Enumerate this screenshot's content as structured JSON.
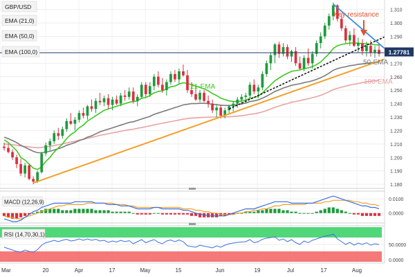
{
  "symbol": "GBP/USD",
  "price_tag": "1.27781",
  "indicators": [
    "EMA (21,0)",
    "EMA (50,0)",
    "EMA (100,0)"
  ],
  "annotations": {
    "key_resistance": "Key resistance",
    "ema21": "21-EMA",
    "ema50": "50-EMA",
    "ema100": "100-EMA"
  },
  "macd": {
    "label": "MACD (12,26,9)",
    "ticks": [
      "0.0100",
      "0.0000"
    ]
  },
  "rsi": {
    "label": "RSI (14,70,30,1)",
    "ticks": [
      "50.0000",
      "0.0000"
    ]
  },
  "colors": {
    "up": "#1e9a3c",
    "down": "#d9323e",
    "ema21": "#3cc81e",
    "ema50": "#7a7a7a",
    "ema100": "#e8a3a3",
    "support": "#f2a02a",
    "resistance": "#3a8de0",
    "annotation": "#e0522e",
    "rsi_overbought": "#3fd16c",
    "rsi_oversold": "#f46a6a"
  },
  "chart_data": {
    "type": "candlestick",
    "xlabels": [
      "Mar",
      "20",
      "Apr",
      "17",
      "May",
      "15",
      "Jun",
      "19",
      "Jul",
      "17",
      "Aug"
    ],
    "yticks": [
      1.18,
      1.19,
      1.2,
      1.21,
      1.22,
      1.23,
      1.24,
      1.25,
      1.26,
      1.27,
      1.28,
      1.29,
      1.3,
      1.31
    ],
    "ylim": [
      1.178,
      1.316
    ],
    "current_price": 1.27781,
    "candles": [
      [
        1.208,
        1.211,
        1.205,
        1.207
      ],
      [
        1.207,
        1.21,
        1.203,
        1.204
      ],
      [
        1.204,
        1.206,
        1.198,
        1.2
      ],
      [
        1.2,
        1.202,
        1.192,
        1.195
      ],
      [
        1.195,
        1.199,
        1.186,
        1.188
      ],
      [
        1.188,
        1.196,
        1.185,
        1.194
      ],
      [
        1.194,
        1.195,
        1.183,
        1.184
      ],
      [
        1.184,
        1.186,
        1.18,
        1.182
      ],
      [
        1.182,
        1.19,
        1.181,
        1.189
      ],
      [
        1.189,
        1.204,
        1.188,
        1.203
      ],
      [
        1.203,
        1.211,
        1.201,
        1.209
      ],
      [
        1.209,
        1.214,
        1.205,
        1.212
      ],
      [
        1.212,
        1.22,
        1.21,
        1.218
      ],
      [
        1.218,
        1.222,
        1.213,
        1.216
      ],
      [
        1.216,
        1.223,
        1.214,
        1.221
      ],
      [
        1.221,
        1.229,
        1.219,
        1.227
      ],
      [
        1.227,
        1.233,
        1.224,
        1.225
      ],
      [
        1.225,
        1.23,
        1.22,
        1.228
      ],
      [
        1.228,
        1.235,
        1.226,
        1.233
      ],
      [
        1.233,
        1.237,
        1.229,
        1.231
      ],
      [
        1.231,
        1.239,
        1.228,
        1.238
      ],
      [
        1.238,
        1.243,
        1.234,
        1.236
      ],
      [
        1.236,
        1.244,
        1.233,
        1.242
      ],
      [
        1.242,
        1.248,
        1.239,
        1.241
      ],
      [
        1.241,
        1.246,
        1.238,
        1.244
      ],
      [
        1.244,
        1.247,
        1.236,
        1.239
      ],
      [
        1.239,
        1.245,
        1.235,
        1.243
      ],
      [
        1.243,
        1.246,
        1.239,
        1.24
      ],
      [
        1.24,
        1.248,
        1.238,
        1.246
      ],
      [
        1.246,
        1.25,
        1.242,
        1.245
      ],
      [
        1.245,
        1.252,
        1.243,
        1.249
      ],
      [
        1.249,
        1.252,
        1.24,
        1.242
      ],
      [
        1.242,
        1.247,
        1.238,
        1.245
      ],
      [
        1.245,
        1.256,
        1.244,
        1.254
      ],
      [
        1.254,
        1.256,
        1.245,
        1.247
      ],
      [
        1.247,
        1.256,
        1.245,
        1.253
      ],
      [
        1.253,
        1.262,
        1.25,
        1.26
      ],
      [
        1.26,
        1.264,
        1.252,
        1.254
      ],
      [
        1.254,
        1.259,
        1.248,
        1.25
      ],
      [
        1.25,
        1.258,
        1.246,
        1.256
      ],
      [
        1.256,
        1.264,
        1.254,
        1.262
      ],
      [
        1.262,
        1.265,
        1.256,
        1.258
      ],
      [
        1.258,
        1.266,
        1.255,
        1.264
      ],
      [
        1.264,
        1.269,
        1.26,
        1.261
      ],
      [
        1.261,
        1.265,
        1.248,
        1.25
      ],
      [
        1.25,
        1.256,
        1.245,
        1.247
      ],
      [
        1.247,
        1.253,
        1.242,
        1.243
      ],
      [
        1.243,
        1.25,
        1.241,
        1.248
      ],
      [
        1.248,
        1.25,
        1.241,
        1.242
      ],
      [
        1.242,
        1.246,
        1.237,
        1.24
      ],
      [
        1.24,
        1.243,
        1.233,
        1.235
      ],
      [
        1.235,
        1.239,
        1.23,
        1.237
      ],
      [
        1.237,
        1.239,
        1.229,
        1.231
      ],
      [
        1.231,
        1.237,
        1.229,
        1.235
      ],
      [
        1.235,
        1.239,
        1.232,
        1.238
      ],
      [
        1.238,
        1.242,
        1.234,
        1.24
      ],
      [
        1.24,
        1.245,
        1.237,
        1.243
      ],
      [
        1.243,
        1.247,
        1.239,
        1.245
      ],
      [
        1.245,
        1.248,
        1.241,
        1.246
      ],
      [
        1.246,
        1.256,
        1.244,
        1.254
      ],
      [
        1.254,
        1.258,
        1.247,
        1.249
      ],
      [
        1.249,
        1.254,
        1.244,
        1.252
      ],
      [
        1.252,
        1.264,
        1.25,
        1.262
      ],
      [
        1.262,
        1.272,
        1.26,
        1.27
      ],
      [
        1.27,
        1.278,
        1.265,
        1.276
      ],
      [
        1.276,
        1.285,
        1.27,
        1.284
      ],
      [
        1.284,
        1.286,
        1.274,
        1.277
      ],
      [
        1.277,
        1.285,
        1.275,
        1.282
      ],
      [
        1.282,
        1.284,
        1.273,
        1.275
      ],
      [
        1.275,
        1.28,
        1.271,
        1.279
      ],
      [
        1.279,
        1.282,
        1.268,
        1.27
      ],
      [
        1.27,
        1.275,
        1.265,
        1.266
      ],
      [
        1.266,
        1.276,
        1.264,
        1.274
      ],
      [
        1.274,
        1.281,
        1.268,
        1.27
      ],
      [
        1.27,
        1.279,
        1.266,
        1.277
      ],
      [
        1.277,
        1.287,
        1.275,
        1.285
      ],
      [
        1.285,
        1.293,
        1.281,
        1.29
      ],
      [
        1.29,
        1.3,
        1.288,
        1.298
      ],
      [
        1.298,
        1.307,
        1.295,
        1.305
      ],
      [
        1.305,
        1.315,
        1.302,
        1.313
      ],
      [
        1.313,
        1.314,
        1.301,
        1.303
      ],
      [
        1.303,
        1.306,
        1.294,
        1.296
      ],
      [
        1.296,
        1.298,
        1.285,
        1.287
      ],
      [
        1.287,
        1.294,
        1.283,
        1.291
      ],
      [
        1.291,
        1.296,
        1.282,
        1.283
      ],
      [
        1.283,
        1.289,
        1.278,
        1.285
      ],
      [
        1.285,
        1.288,
        1.276,
        1.279
      ],
      [
        1.279,
        1.286,
        1.275,
        1.283
      ],
      [
        1.283,
        1.287,
        1.275,
        1.278
      ],
      [
        1.278,
        1.283,
        1.274,
        1.28
      ],
      [
        1.28,
        1.284,
        1.275,
        1.277
      ]
    ],
    "ema21": [
      1.213,
      1.211,
      1.208,
      1.205,
      1.2,
      1.198,
      1.195,
      1.192,
      1.191,
      1.193,
      1.197,
      1.2,
      1.204,
      1.207,
      1.21,
      1.214,
      1.217,
      1.219,
      1.222,
      1.224,
      1.227,
      1.229,
      1.231,
      1.233,
      1.235,
      1.236,
      1.237,
      1.238,
      1.239,
      1.24,
      1.241,
      1.2415,
      1.242,
      1.244,
      1.2445,
      1.246,
      1.248,
      1.249,
      1.2495,
      1.251,
      1.2525,
      1.253,
      1.2545,
      1.2555,
      1.255,
      1.254,
      1.253,
      1.252,
      1.251,
      1.2495,
      1.2475,
      1.246,
      1.244,
      1.243,
      1.242,
      1.2415,
      1.2415,
      1.242,
      1.2425,
      1.244,
      1.2445,
      1.2455,
      1.248,
      1.251,
      1.254,
      1.257,
      1.259,
      1.261,
      1.2625,
      1.264,
      1.2645,
      1.265,
      1.266,
      1.2665,
      1.2675,
      1.269,
      1.271,
      1.274,
      1.277,
      1.281,
      1.283,
      1.284,
      1.2845,
      1.285,
      1.285,
      1.285,
      1.2845,
      1.2845,
      1.284,
      1.2838,
      1.2835
    ],
    "ema50": [
      1.215,
      1.214,
      1.2125,
      1.211,
      1.209,
      1.2075,
      1.206,
      1.2045,
      1.2035,
      1.2035,
      1.204,
      1.2045,
      1.2055,
      1.2065,
      1.2075,
      1.209,
      1.21,
      1.211,
      1.2125,
      1.2135,
      1.215,
      1.216,
      1.2175,
      1.219,
      1.22,
      1.221,
      1.222,
      1.223,
      1.224,
      1.225,
      1.226,
      1.2265,
      1.2275,
      1.2285,
      1.2295,
      1.2305,
      1.232,
      1.233,
      1.234,
      1.235,
      1.236,
      1.237,
      1.238,
      1.239,
      1.2395,
      1.24,
      1.24,
      1.2402,
      1.2402,
      1.24,
      1.2395,
      1.2392,
      1.2388,
      1.2386,
      1.2386,
      1.2388,
      1.2392,
      1.2398,
      1.2404,
      1.2415,
      1.242,
      1.2428,
      1.244,
      1.2455,
      1.2472,
      1.249,
      1.2502,
      1.2516,
      1.2525,
      1.2536,
      1.2542,
      1.2548,
      1.2556,
      1.2562,
      1.257,
      1.258,
      1.2592,
      1.2608,
      1.2626,
      1.2648,
      1.266,
      1.2668,
      1.2674,
      1.2682,
      1.2686,
      1.2692,
      1.2695,
      1.27,
      1.2702,
      1.2706,
      1.2708
    ],
    "ema100": [
      1.21,
      1.2098,
      1.2094,
      1.209,
      1.2085,
      1.2082,
      1.2078,
      1.2074,
      1.2072,
      1.2074,
      1.2078,
      1.2082,
      1.2088,
      1.2094,
      1.21,
      1.2108,
      1.2114,
      1.212,
      1.2128,
      1.2134,
      1.2142,
      1.2148,
      1.2156,
      1.2164,
      1.217,
      1.2176,
      1.2182,
      1.2188,
      1.2194,
      1.22,
      1.2206,
      1.221,
      1.2216,
      1.2222,
      1.2228,
      1.2234,
      1.2242,
      1.2248,
      1.2254,
      1.226,
      1.2266,
      1.2272,
      1.2278,
      1.2284,
      1.2288,
      1.2292,
      1.2294,
      1.2296,
      1.2298,
      1.2299,
      1.23,
      1.23,
      1.23,
      1.2301,
      1.2302,
      1.2304,
      1.2307,
      1.231,
      1.2314,
      1.232,
      1.2324,
      1.233,
      1.2338,
      1.2348,
      1.236,
      1.2372,
      1.2382,
      1.2392,
      1.24,
      1.241,
      1.2416,
      1.2422,
      1.243,
      1.2436,
      1.2444,
      1.2452,
      1.2462,
      1.2474,
      1.2488,
      1.2504,
      1.2514,
      1.2522,
      1.253,
      1.2538,
      1.2544,
      1.255,
      1.2556,
      1.2562,
      1.2566,
      1.257,
      1.2574
    ],
    "trendlines": {
      "support": [
        [
          7,
          1.181
        ],
        [
          94,
          1.276
        ]
      ],
      "dotted_support": [
        [
          54,
          1.236
        ],
        [
          93,
          1.292
        ]
      ],
      "resistance": [
        [
          79,
          1.314
        ],
        [
          93,
          1.2765
        ]
      ]
    },
    "macd": {
      "ylim": [
        -0.006,
        0.014
      ],
      "hist": [
        -0.002,
        -0.003,
        -0.004,
        -0.004,
        -0.003,
        -0.002,
        -0.001,
        0.0,
        0.001,
        0.002,
        0.003,
        0.003,
        0.003,
        0.003,
        0.002,
        0.002,
        0.002,
        0.003,
        0.003,
        0.003,
        0.003,
        0.003,
        0.002,
        0.002,
        0.002,
        0.002,
        0.001,
        0.001,
        0.001,
        0.001,
        0.001,
        0.0,
        -0.001,
        -0.001,
        -0.001,
        -0.001,
        0.0,
        0.0,
        -0.001,
        -0.001,
        -0.001,
        -0.001,
        -0.001,
        -0.001,
        -0.001,
        -0.002,
        -0.002,
        -0.003,
        -0.003,
        -0.003,
        -0.003,
        -0.003,
        -0.002,
        -0.002,
        -0.001,
        -0.001,
        0.0,
        0.0,
        0.001,
        0.001,
        0.001,
        0.002,
        0.002,
        0.003,
        0.003,
        0.003,
        0.003,
        0.002,
        0.002,
        0.001,
        0.001,
        0.0,
        0.0,
        0.0,
        0.0,
        0.001,
        0.002,
        0.003,
        0.004,
        0.004,
        0.003,
        0.002,
        0.001,
        0.0,
        -0.001,
        -0.001,
        -0.002,
        -0.002,
        -0.002,
        -0.002,
        -0.002
      ],
      "macd": [
        -0.004,
        -0.005,
        -0.006,
        -0.006,
        -0.005,
        -0.003,
        -0.001,
        0.001,
        0.002,
        0.004,
        0.005,
        0.006,
        0.007,
        0.007,
        0.007,
        0.007,
        0.007,
        0.008,
        0.008,
        0.008,
        0.008,
        0.008,
        0.007,
        0.007,
        0.007,
        0.006,
        0.006,
        0.006,
        0.005,
        0.005,
        0.005,
        0.004,
        0.003,
        0.003,
        0.003,
        0.003,
        0.004,
        0.004,
        0.003,
        0.003,
        0.003,
        0.003,
        0.003,
        0.002,
        0.002,
        0.001,
        0.0,
        -0.001,
        -0.001,
        -0.002,
        -0.002,
        -0.002,
        -0.002,
        -0.002,
        -0.001,
        0.0,
        0.001,
        0.002,
        0.003,
        0.003,
        0.003,
        0.004,
        0.005,
        0.006,
        0.007,
        0.008,
        0.008,
        0.008,
        0.008,
        0.007,
        0.007,
        0.007,
        0.007,
        0.007,
        0.007,
        0.008,
        0.009,
        0.01,
        0.011,
        0.012,
        0.011,
        0.01,
        0.009,
        0.008,
        0.007,
        0.006,
        0.005,
        0.005,
        0.004,
        0.004,
        0.003
      ],
      "signal": [
        -0.002,
        -0.003,
        -0.003,
        -0.004,
        -0.004,
        -0.003,
        -0.002,
        -0.001,
        0.0,
        0.001,
        0.002,
        0.003,
        0.004,
        0.005,
        0.005,
        0.006,
        0.006,
        0.006,
        0.006,
        0.006,
        0.007,
        0.007,
        0.007,
        0.007,
        0.007,
        0.007,
        0.007,
        0.006,
        0.006,
        0.006,
        0.005,
        0.005,
        0.004,
        0.004,
        0.004,
        0.004,
        0.004,
        0.004,
        0.004,
        0.004,
        0.004,
        0.004,
        0.004,
        0.003,
        0.003,
        0.003,
        0.002,
        0.002,
        0.001,
        0.001,
        0.0,
        0.0,
        -0.001,
        -0.001,
        -0.001,
        -0.001,
        0.0,
        0.0,
        0.001,
        0.001,
        0.002,
        0.002,
        0.003,
        0.003,
        0.004,
        0.005,
        0.005,
        0.006,
        0.006,
        0.006,
        0.006,
        0.006,
        0.006,
        0.007,
        0.007,
        0.007,
        0.007,
        0.008,
        0.008,
        0.009,
        0.009,
        0.009,
        0.009,
        0.009,
        0.008,
        0.008,
        0.007,
        0.007,
        0.006,
        0.006,
        0.005
      ]
    },
    "rsi": {
      "ylim": [
        0,
        100
      ],
      "overbought": 70,
      "oversold": 30,
      "values": [
        42,
        38,
        34,
        30,
        28,
        34,
        30,
        28,
        35,
        48,
        55,
        58,
        62,
        58,
        62,
        65,
        60,
        62,
        66,
        62,
        66,
        62,
        65,
        60,
        62,
        56,
        60,
        57,
        62,
        58,
        61,
        52,
        58,
        64,
        55,
        60,
        64,
        56,
        52,
        60,
        63,
        58,
        63,
        58,
        46,
        44,
        42,
        48,
        45,
        43,
        40,
        46,
        42,
        48,
        52,
        54,
        56,
        57,
        58,
        64,
        55,
        58,
        65,
        68,
        70,
        72,
        62,
        66,
        58,
        64,
        55,
        50,
        60,
        55,
        62,
        66,
        70,
        74,
        76,
        80,
        66,
        58,
        50,
        56,
        48,
        54,
        50,
        55,
        48,
        52,
        50
      ]
    }
  }
}
